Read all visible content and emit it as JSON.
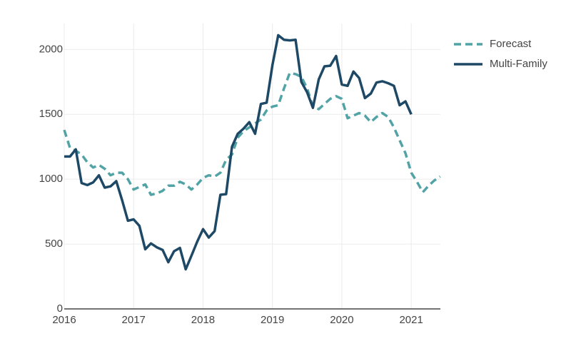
{
  "chart_data": {
    "type": "line",
    "xlim": [
      2016,
      2021.42
    ],
    "xticks": [
      2016,
      2017,
      2018,
      2019,
      2020,
      2021
    ],
    "ylim": [
      0,
      2200
    ],
    "yticks": [
      0,
      500,
      1000,
      1500,
      2000
    ],
    "grid": true,
    "legend": "top-right",
    "series": [
      {
        "name": "Forecast",
        "color": "#52a3a6",
        "dash": true,
        "x": [
          2016,
          2016.083,
          2016.167,
          2016.25,
          2016.333,
          2016.417,
          2016.5,
          2016.583,
          2016.667,
          2016.75,
          2016.833,
          2016.917,
          2017,
          2017.083,
          2017.167,
          2017.25,
          2017.333,
          2017.417,
          2017.5,
          2017.583,
          2017.667,
          2017.75,
          2017.833,
          2017.917,
          2018,
          2018.083,
          2018.167,
          2018.25,
          2018.333,
          2018.417,
          2018.5,
          2018.583,
          2018.667,
          2018.75,
          2018.833,
          2018.917,
          2019,
          2019.083,
          2019.167,
          2019.25,
          2019.333,
          2019.417,
          2019.5,
          2019.583,
          2019.667,
          2019.75,
          2019.833,
          2019.917,
          2020,
          2020.083,
          2020.167,
          2020.25,
          2020.333,
          2020.417,
          2020.5,
          2020.583,
          2020.667,
          2020.75,
          2020.833,
          2020.917,
          2021,
          2021.083,
          2021.167,
          2021.25,
          2021.333,
          2021.417
        ],
        "values": [
          1380,
          1240,
          1220,
          1190,
          1130,
          1090,
          1110,
          1080,
          1030,
          1050,
          1050,
          1000,
          920,
          940,
          960,
          880,
          890,
          910,
          950,
          950,
          980,
          960,
          920,
          960,
          1010,
          1030,
          1020,
          1050,
          1150,
          1190,
          1320,
          1370,
          1400,
          1430,
          1460,
          1530,
          1560,
          1570,
          1700,
          1820,
          1810,
          1790,
          1700,
          1560,
          1540,
          1580,
          1620,
          1640,
          1620,
          1470,
          1490,
          1510,
          1490,
          1440,
          1480,
          1510,
          1480,
          1400,
          1300,
          1200,
          1050,
          980,
          900,
          950,
          990,
          1020
        ]
      },
      {
        "name": "Multi-Family",
        "color": "#1e4966",
        "dash": false,
        "x": [
          2016,
          2016.083,
          2016.167,
          2016.25,
          2016.333,
          2016.417,
          2016.5,
          2016.583,
          2016.667,
          2016.75,
          2016.833,
          2016.917,
          2017,
          2017.083,
          2017.167,
          2017.25,
          2017.333,
          2017.417,
          2017.5,
          2017.583,
          2017.667,
          2017.75,
          2017.833,
          2017.917,
          2018,
          2018.083,
          2018.167,
          2018.25,
          2018.333,
          2018.417,
          2018.5,
          2018.583,
          2018.667,
          2018.75,
          2018.833,
          2018.917,
          2019,
          2019.083,
          2019.167,
          2019.25,
          2019.333,
          2019.417,
          2019.5,
          2019.583,
          2019.667,
          2019.75,
          2019.833,
          2019.917,
          2020,
          2020.083,
          2020.167,
          2020.25,
          2020.333,
          2020.417,
          2020.5,
          2020.583,
          2020.667,
          2020.75,
          2020.833,
          2020.917,
          2021
        ],
        "values": [
          1175,
          1175,
          1230,
          970,
          955,
          975,
          1030,
          935,
          945,
          985,
          840,
          680,
          690,
          640,
          460,
          505,
          475,
          455,
          360,
          445,
          470,
          305,
          410,
          520,
          615,
          550,
          600,
          880,
          885,
          1250,
          1350,
          1390,
          1440,
          1350,
          1580,
          1590,
          1880,
          2110,
          2075,
          2070,
          2075,
          1750,
          1670,
          1550,
          1770,
          1870,
          1875,
          1950,
          1730,
          1720,
          1830,
          1780,
          1625,
          1660,
          1745,
          1755,
          1740,
          1720,
          1570,
          1600,
          1500
        ]
      }
    ]
  }
}
